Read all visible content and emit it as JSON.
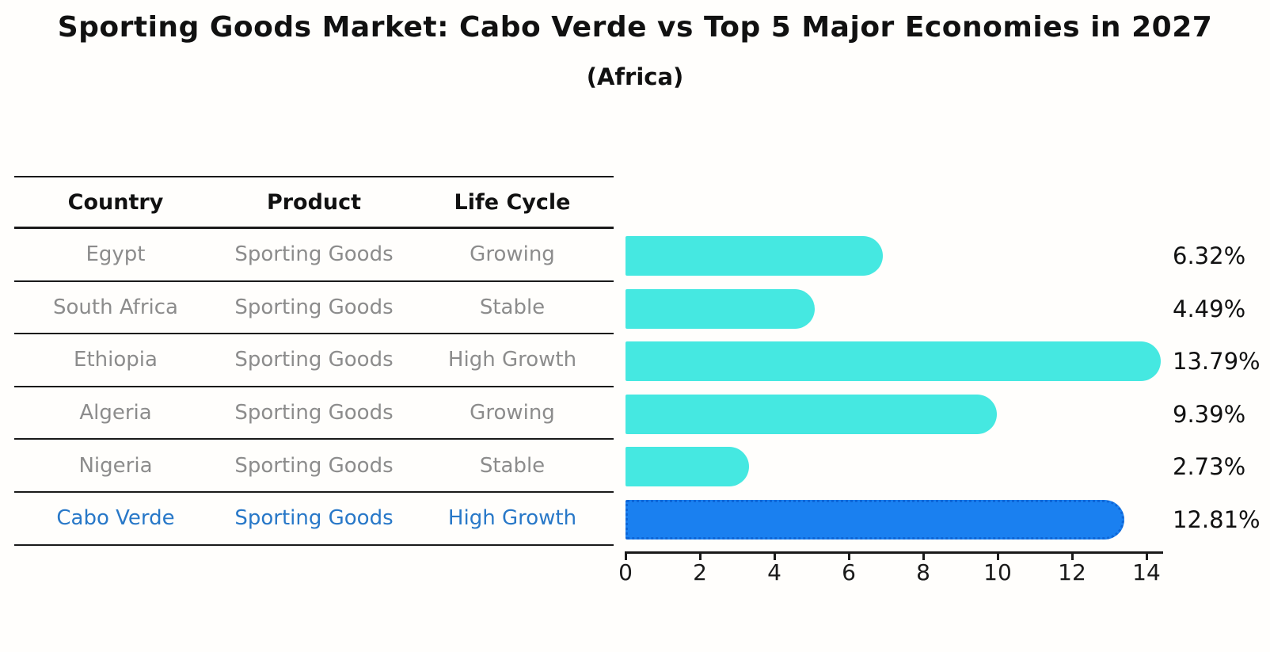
{
  "title": "Sporting Goods Market: Cabo Verde vs Top 5 Major Economies in 2027",
  "subtitle": "(Africa)",
  "table": {
    "columns": [
      "Country",
      "Product",
      "Life Cycle"
    ]
  },
  "chart_data": {
    "type": "bar",
    "orientation": "horizontal",
    "title": "Sporting Goods Market: Cabo Verde vs Top 5 Major Economies in 2027 (Africa)",
    "xlabel": "",
    "ylabel": "",
    "xlim": [
      0,
      14.4
    ],
    "x_ticks": [
      0,
      2,
      4,
      6,
      8,
      10,
      12,
      14
    ],
    "grid": false,
    "legend": false,
    "categories": [
      "Egypt",
      "South Africa",
      "Ethiopia",
      "Algeria",
      "Nigeria",
      "Cabo Verde"
    ],
    "values": [
      6.32,
      4.49,
      13.79,
      9.39,
      2.73,
      12.81
    ],
    "rows": [
      {
        "country": "Egypt",
        "product": "Sporting Goods",
        "life_cycle": "Growing",
        "value": 6.32,
        "label": "6.32%",
        "highlight": false
      },
      {
        "country": "South Africa",
        "product": "Sporting Goods",
        "life_cycle": "Stable",
        "value": 4.49,
        "label": "4.49%",
        "highlight": false
      },
      {
        "country": "Ethiopia",
        "product": "Sporting Goods",
        "life_cycle": "High Growth",
        "value": 13.79,
        "label": "13.79%",
        "highlight": false
      },
      {
        "country": "Algeria",
        "product": "Sporting Goods",
        "life_cycle": "Growing",
        "value": 9.39,
        "label": "9.39%",
        "highlight": false
      },
      {
        "country": "Nigeria",
        "product": "Sporting Goods",
        "life_cycle": "Stable",
        "value": 2.73,
        "label": "2.73%",
        "highlight": false
      },
      {
        "country": "Cabo Verde",
        "product": "Sporting Goods",
        "life_cycle": "High Growth",
        "value": 12.81,
        "label": "12.81%",
        "highlight": true
      }
    ]
  },
  "colors": {
    "bar_default": "#45e8e1",
    "bar_highlight": "#1a80f0",
    "bar_highlight_border": "#0e66d7",
    "row_text": "#8c8c8c",
    "highlight_text": "#2878c8",
    "axis_text": "#1a1a1a"
  }
}
